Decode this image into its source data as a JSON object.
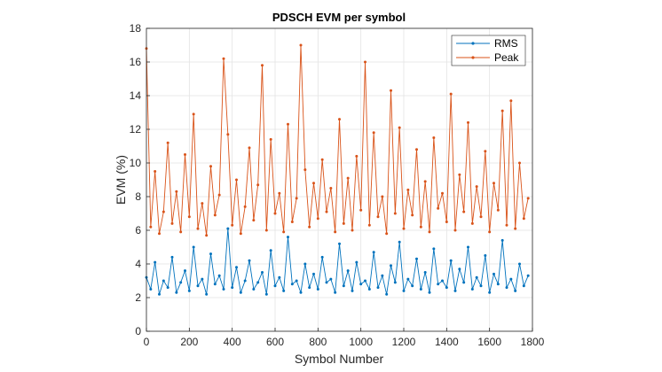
{
  "chart_data": {
    "type": "line",
    "title": "PDSCH EVM per symbol",
    "xlabel": "Symbol Number",
    "ylabel": "EVM (%)",
    "xlim": [
      0,
      1800
    ],
    "ylim": [
      0,
      18
    ],
    "xticks": [
      0,
      200,
      400,
      600,
      800,
      1000,
      1200,
      1400,
      1600,
      1800
    ],
    "yticks": [
      0,
      2,
      4,
      6,
      8,
      10,
      12,
      14,
      16,
      18
    ],
    "grid": true,
    "legend_position": "top-right",
    "x": [
      0,
      20,
      40,
      60,
      80,
      100,
      120,
      140,
      160,
      180,
      200,
      220,
      240,
      260,
      280,
      300,
      320,
      340,
      360,
      380,
      400,
      420,
      440,
      460,
      480,
      500,
      520,
      540,
      560,
      580,
      600,
      620,
      640,
      660,
      680,
      700,
      720,
      740,
      760,
      780,
      800,
      820,
      840,
      860,
      880,
      900,
      920,
      940,
      960,
      980,
      1000,
      1020,
      1040,
      1060,
      1080,
      1100,
      1120,
      1140,
      1160,
      1180,
      1200,
      1220,
      1240,
      1260,
      1280,
      1300,
      1320,
      1340,
      1360,
      1380,
      1400,
      1420,
      1440,
      1460,
      1480,
      1500,
      1520,
      1540,
      1560,
      1580,
      1600,
      1620,
      1640,
      1660,
      1680,
      1700,
      1720,
      1740,
      1760,
      1780
    ],
    "series": [
      {
        "name": "RMS",
        "color": "#0072BD",
        "values": [
          3.2,
          2.5,
          4.1,
          2.2,
          3.0,
          2.6,
          4.4,
          2.3,
          2.9,
          3.6,
          2.4,
          5.0,
          2.7,
          3.1,
          2.2,
          4.6,
          2.8,
          3.3,
          2.5,
          6.1,
          2.6,
          3.8,
          2.3,
          3.0,
          4.2,
          2.5,
          2.9,
          3.5,
          2.2,
          4.8,
          2.7,
          3.2,
          2.4,
          5.6,
          2.8,
          3.0,
          2.3,
          4.0,
          2.6,
          3.4,
          2.5,
          4.4,
          2.9,
          3.1,
          2.3,
          5.2,
          2.7,
          3.6,
          2.4,
          4.1,
          2.8,
          3.0,
          2.5,
          4.7,
          2.6,
          3.3,
          2.2,
          3.9,
          2.9,
          5.3,
          2.4,
          3.1,
          2.7,
          4.3,
          2.5,
          3.5,
          2.3,
          4.9,
          2.8,
          3.0,
          2.6,
          4.2,
          2.4,
          3.7,
          2.9,
          5.0,
          2.5,
          3.2,
          2.7,
          4.5,
          2.3,
          3.4,
          2.8,
          5.4,
          2.6,
          3.1,
          2.4,
          4.0,
          2.7,
          3.3
        ]
      },
      {
        "name": "Peak",
        "color": "#D95319",
        "values": [
          16.8,
          6.2,
          9.5,
          5.8,
          7.1,
          11.2,
          6.4,
          8.3,
          5.9,
          10.5,
          6.8,
          12.9,
          6.1,
          7.6,
          5.7,
          9.8,
          6.9,
          8.1,
          16.2,
          11.7,
          6.3,
          9.0,
          5.8,
          7.4,
          10.9,
          6.6,
          8.7,
          15.8,
          6.0,
          11.4,
          7.0,
          8.2,
          5.9,
          12.3,
          6.5,
          7.9,
          17.0,
          9.6,
          6.2,
          8.8,
          6.7,
          10.2,
          7.1,
          8.5,
          5.9,
          12.6,
          6.4,
          9.1,
          6.0,
          10.4,
          7.2,
          16.0,
          6.3,
          11.8,
          6.8,
          8.0,
          5.8,
          14.3,
          7.0,
          12.1,
          6.1,
          8.4,
          6.9,
          10.8,
          6.2,
          8.9,
          5.9,
          11.5,
          7.3,
          8.2,
          6.5,
          14.1,
          6.0,
          9.3,
          7.1,
          12.4,
          6.4,
          8.6,
          6.8,
          10.7,
          5.9,
          8.8,
          7.2,
          13.1,
          6.3,
          13.7,
          6.1,
          10.0,
          6.7,
          7.9
        ]
      }
    ]
  }
}
